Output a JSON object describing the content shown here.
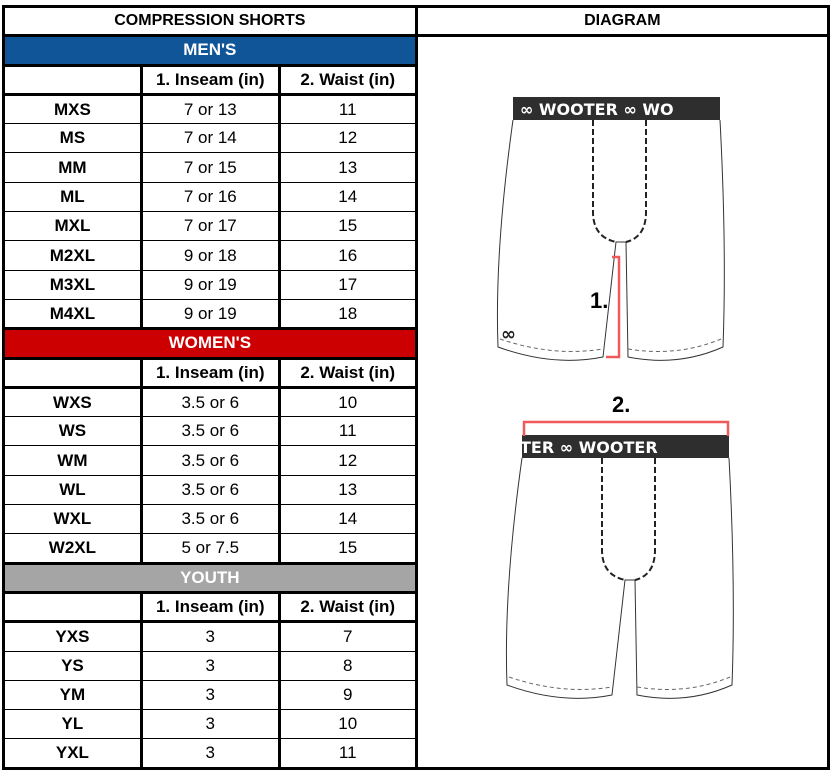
{
  "header": {
    "left_title": "COMPRESSION SHORTS",
    "right_title": "DIAGRAM"
  },
  "columns": {
    "inseam": "1. Inseam (in)",
    "waist": "2. Waist (in)"
  },
  "sections": [
    {
      "name": "MEN'S",
      "color": "#0f5597",
      "rows": [
        [
          "MXS",
          "7 or 13",
          "11"
        ],
        [
          "MS",
          "7 or 14",
          "12"
        ],
        [
          "MM",
          "7 or 15",
          "13"
        ],
        [
          "ML",
          "7 or 16",
          "14"
        ],
        [
          "MXL",
          "7 or 17",
          "15"
        ],
        [
          "M2XL",
          "9 or 18",
          "16"
        ],
        [
          "M3XL",
          "9 or 19",
          "17"
        ],
        [
          "M4XL",
          "9 or 19",
          "18"
        ]
      ]
    },
    {
      "name": "WOMEN'S",
      "color": "#cc0000",
      "rows": [
        [
          "WXS",
          "3.5 or 6",
          "10"
        ],
        [
          "WS",
          "3.5 or 6",
          "11"
        ],
        [
          "WM",
          "3.5 or 6",
          "12"
        ],
        [
          "WL",
          "3.5 or 6",
          "13"
        ],
        [
          "WXL",
          "3.5 or 6",
          "14"
        ],
        [
          "W2XL",
          "5 or 7.5",
          "15"
        ]
      ]
    },
    {
      "name": "YOUTH",
      "color": "#a5a5a5",
      "rows": [
        [
          "YXS",
          "3",
          "7"
        ],
        [
          "YS",
          "3",
          "8"
        ],
        [
          "YM",
          "3",
          "9"
        ],
        [
          "YL",
          "3",
          "10"
        ],
        [
          "YXL",
          "3",
          "11"
        ]
      ]
    }
  ],
  "diagram": {
    "brand": "WOOTER",
    "label_inseam": "1.",
    "label_waist": "2.",
    "measure_color": "#f05a5a"
  }
}
